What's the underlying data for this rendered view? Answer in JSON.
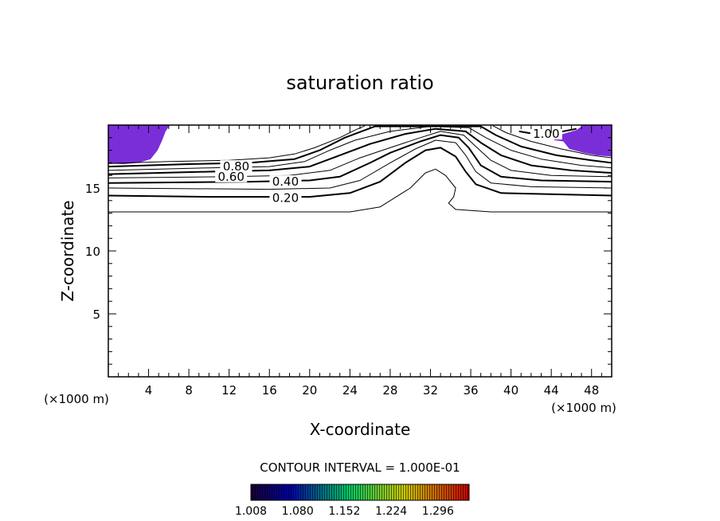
{
  "chart_data": {
    "type": "contour",
    "title": "saturation ratio",
    "xlabel": "X-coordinate",
    "ylabel": "Z-coordinate",
    "x_unit": "(×1000 m)",
    "y_unit": "(×1000 m)",
    "xlim": [
      0,
      50
    ],
    "ylim": [
      0,
      20
    ],
    "x_ticks": [
      4,
      8,
      12,
      16,
      20,
      24,
      28,
      32,
      36,
      40,
      44,
      48
    ],
    "y_ticks": [
      5,
      10,
      15
    ],
    "contour_interval_text": "CONTOUR INTERVAL = 1.000E-01",
    "contour_labels": [
      {
        "text": "0.80",
        "x": 12.7,
        "z": 16.7
      },
      {
        "text": "0.60",
        "x": 12.2,
        "z": 15.9
      },
      {
        "text": "0.40",
        "x": 17.6,
        "z": 15.5
      },
      {
        "text": "0.20",
        "x": 17.6,
        "z": 14.2
      },
      {
        "text": "1.00",
        "x": 43.5,
        "z": 19.3
      }
    ],
    "colorbar": {
      "min": 1.008,
      "max": 1.344,
      "tick_labels": [
        "1.008",
        "1.080",
        "1.152",
        "1.224",
        "1.296"
      ],
      "colors": [
        "#1a0033",
        "#0000aa",
        "#00cc66",
        "#cccc00",
        "#cc0000"
      ]
    },
    "supersaturated_fill_color": "#7a2ed8",
    "contours": [
      {
        "level": 0.1,
        "points": [
          [
            0,
            13.1
          ],
          [
            18,
            13.1
          ],
          [
            24,
            13.1
          ],
          [
            27,
            13.5
          ],
          [
            30,
            15.0
          ],
          [
            31.5,
            16.2
          ],
          [
            32.5,
            16.5
          ],
          [
            33.5,
            16.0
          ],
          [
            34.5,
            15.0
          ],
          [
            34.3,
            14.3
          ],
          [
            33.8,
            13.8
          ],
          [
            34.5,
            13.3
          ],
          [
            38,
            13.1
          ],
          [
            50,
            13.1
          ]
        ]
      },
      {
        "level": 0.2,
        "points": [
          [
            0,
            14.4
          ],
          [
            10,
            14.3
          ],
          [
            20,
            14.3
          ],
          [
            24,
            14.6
          ],
          [
            27,
            15.5
          ],
          [
            29.5,
            17.0
          ],
          [
            31.5,
            18.0
          ],
          [
            33,
            18.2
          ],
          [
            34.5,
            17.5
          ],
          [
            35.5,
            16.3
          ],
          [
            36.5,
            15.3
          ],
          [
            39,
            14.6
          ],
          [
            50,
            14.4
          ]
        ]
      },
      {
        "level": 0.3,
        "points": [
          [
            0,
            15.0
          ],
          [
            16,
            14.9
          ],
          [
            22,
            15.0
          ],
          [
            25,
            15.6
          ],
          [
            28,
            17.0
          ],
          [
            30.5,
            18.1
          ],
          [
            32.5,
            18.8
          ],
          [
            34.5,
            18.6
          ],
          [
            35.5,
            17.6
          ],
          [
            36.5,
            16.3
          ],
          [
            38,
            15.4
          ],
          [
            42,
            15.1
          ],
          [
            50,
            15.0
          ]
        ]
      },
      {
        "level": 0.4,
        "points": [
          [
            0,
            15.4
          ],
          [
            14,
            15.5
          ],
          [
            20,
            15.6
          ],
          [
            23,
            15.9
          ],
          [
            26,
            17.0
          ],
          [
            28,
            17.8
          ],
          [
            31,
            18.7
          ],
          [
            33,
            19.2
          ],
          [
            34.8,
            19.0
          ],
          [
            35.8,
            18.2
          ],
          [
            37,
            16.8
          ],
          [
            39,
            15.9
          ],
          [
            43,
            15.6
          ],
          [
            50,
            15.5
          ]
        ]
      },
      {
        "level": 0.5,
        "points": [
          [
            0,
            15.8
          ],
          [
            12,
            15.9
          ],
          [
            18,
            16.0
          ],
          [
            22,
            16.4
          ],
          [
            25,
            17.4
          ],
          [
            28,
            18.2
          ],
          [
            31,
            19.0
          ],
          [
            33,
            19.5
          ],
          [
            35.3,
            19.2
          ],
          [
            36.5,
            18.3
          ],
          [
            38,
            17.2
          ],
          [
            40,
            16.4
          ],
          [
            44,
            16.0
          ],
          [
            50,
            15.9
          ]
        ]
      },
      {
        "level": 0.6,
        "points": [
          [
            0,
            16.1
          ],
          [
            10,
            16.3
          ],
          [
            16,
            16.4
          ],
          [
            20,
            16.7
          ],
          [
            23,
            17.6
          ],
          [
            26,
            18.5
          ],
          [
            29.5,
            19.3
          ],
          [
            32.5,
            19.7
          ],
          [
            35.5,
            19.5
          ],
          [
            37,
            18.6
          ],
          [
            39,
            17.6
          ],
          [
            42,
            16.8
          ],
          [
            46,
            16.4
          ],
          [
            50,
            16.2
          ]
        ]
      },
      {
        "level": 0.7,
        "points": [
          [
            0,
            16.4
          ],
          [
            10,
            16.6
          ],
          [
            16,
            16.7
          ],
          [
            19.5,
            17.1
          ],
          [
            22,
            18.0
          ],
          [
            24.5,
            18.8
          ],
          [
            28,
            19.5
          ],
          [
            32,
            19.9
          ],
          [
            35.8,
            19.8
          ],
          [
            37.5,
            19.0
          ],
          [
            40,
            18.0
          ],
          [
            43,
            17.3
          ],
          [
            47,
            16.8
          ],
          [
            50,
            16.6
          ]
        ]
      },
      {
        "level": 0.8,
        "points": [
          [
            0,
            16.7
          ],
          [
            8,
            16.9
          ],
          [
            14,
            17.0
          ],
          [
            18.5,
            17.3
          ],
          [
            21,
            18.0
          ],
          [
            23.5,
            19.0
          ],
          [
            25.5,
            19.6
          ],
          [
            26.5,
            19.9
          ],
          [
            37,
            19.9
          ],
          [
            38.5,
            19.2
          ],
          [
            41,
            18.3
          ],
          [
            44.5,
            17.6
          ],
          [
            48,
            17.2
          ],
          [
            50,
            17.0
          ]
        ]
      },
      {
        "level": 0.9,
        "points": [
          [
            0,
            16.95
          ],
          [
            6,
            17.1
          ],
          [
            12,
            17.2
          ],
          [
            16,
            17.4
          ],
          [
            18.5,
            17.7
          ],
          [
            20.5,
            18.2
          ],
          [
            23,
            19.0
          ],
          [
            24.5,
            19.6
          ],
          [
            25.5,
            19.95
          ]
        ]
      },
      {
        "level": 0.9,
        "points": [
          [
            38.2,
            19.95
          ],
          [
            39.5,
            19.4
          ],
          [
            42,
            18.7
          ],
          [
            45,
            18.1
          ],
          [
            48,
            17.6
          ],
          [
            50,
            17.4
          ]
        ]
      },
      {
        "level": 1.0,
        "points": [
          [
            40.8,
            19.5
          ],
          [
            43,
            19.2
          ],
          [
            44.5,
            19.4
          ],
          [
            46.5,
            19.7
          ]
        ]
      }
    ],
    "fill_regions": [
      {
        "level": ">1.0",
        "points": [
          [
            0,
            20
          ],
          [
            6.1,
            20
          ],
          [
            5.7,
            19.5
          ],
          [
            5.3,
            18.7
          ],
          [
            4.9,
            18.0
          ],
          [
            4.2,
            17.3
          ],
          [
            3.0,
            17.0
          ],
          [
            1.5,
            16.9
          ],
          [
            0,
            16.95
          ]
        ]
      },
      {
        "level": ">1.0",
        "points": [
          [
            50,
            20
          ],
          [
            47.2,
            20
          ],
          [
            46.5,
            19.6
          ],
          [
            44.3,
            19.1
          ],
          [
            44.3,
            18.8
          ],
          [
            45.2,
            18.7
          ],
          [
            45.8,
            18.1
          ],
          [
            47.2,
            17.8
          ],
          [
            48.5,
            17.6
          ],
          [
            50,
            17.5
          ]
        ]
      }
    ]
  }
}
